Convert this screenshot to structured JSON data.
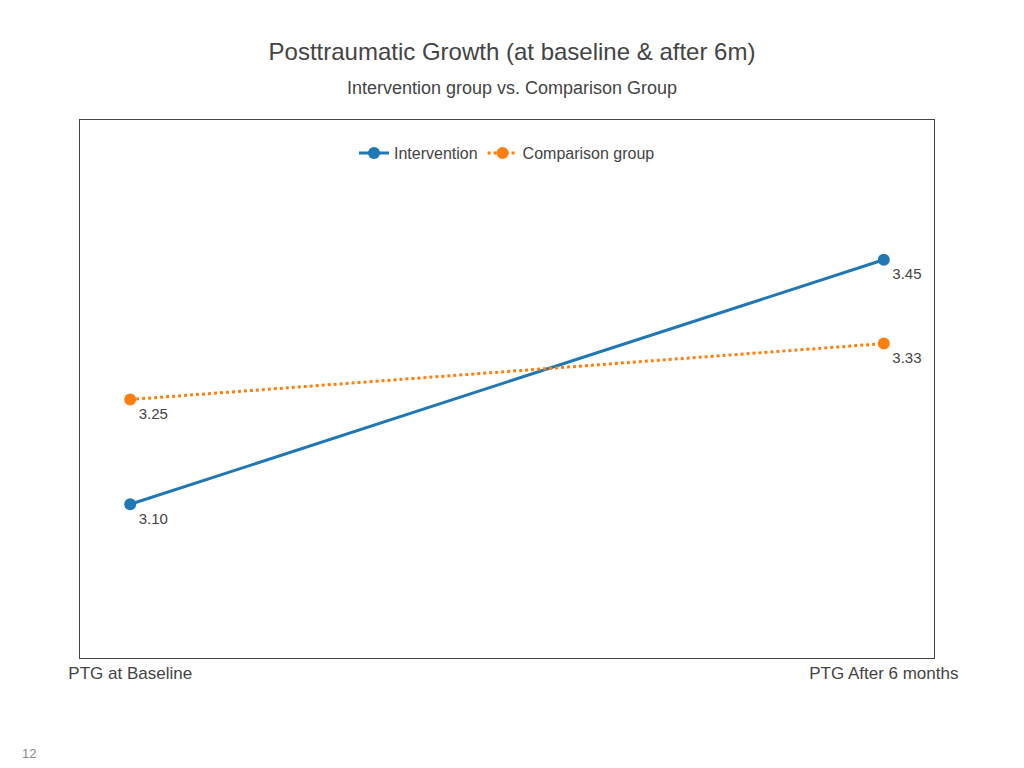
{
  "chart_data": {
    "type": "line",
    "title": "Posttraumatic Growth (at baseline & after 6m)",
    "subtitle": "Intervention group vs. Comparison Group",
    "categories": [
      "PTG at Baseline",
      "PTG After 6 months"
    ],
    "series": [
      {
        "name": "Intervention",
        "values": [
          3.1,
          3.45
        ],
        "value_labels": [
          "3.10",
          "3.45"
        ],
        "line_style": "solid",
        "marker": "circle"
      },
      {
        "name": "Comparison group",
        "values": [
          3.25,
          3.33
        ],
        "value_labels": [
          "3.25",
          "3.33"
        ],
        "line_style": "dotted",
        "marker": "circle"
      }
    ],
    "ylim": [
      2.88,
      3.65
    ],
    "data_labels": true,
    "tick_labels": "x",
    "grid": false,
    "legend": "top",
    "annotations": [
      "12"
    ]
  }
}
